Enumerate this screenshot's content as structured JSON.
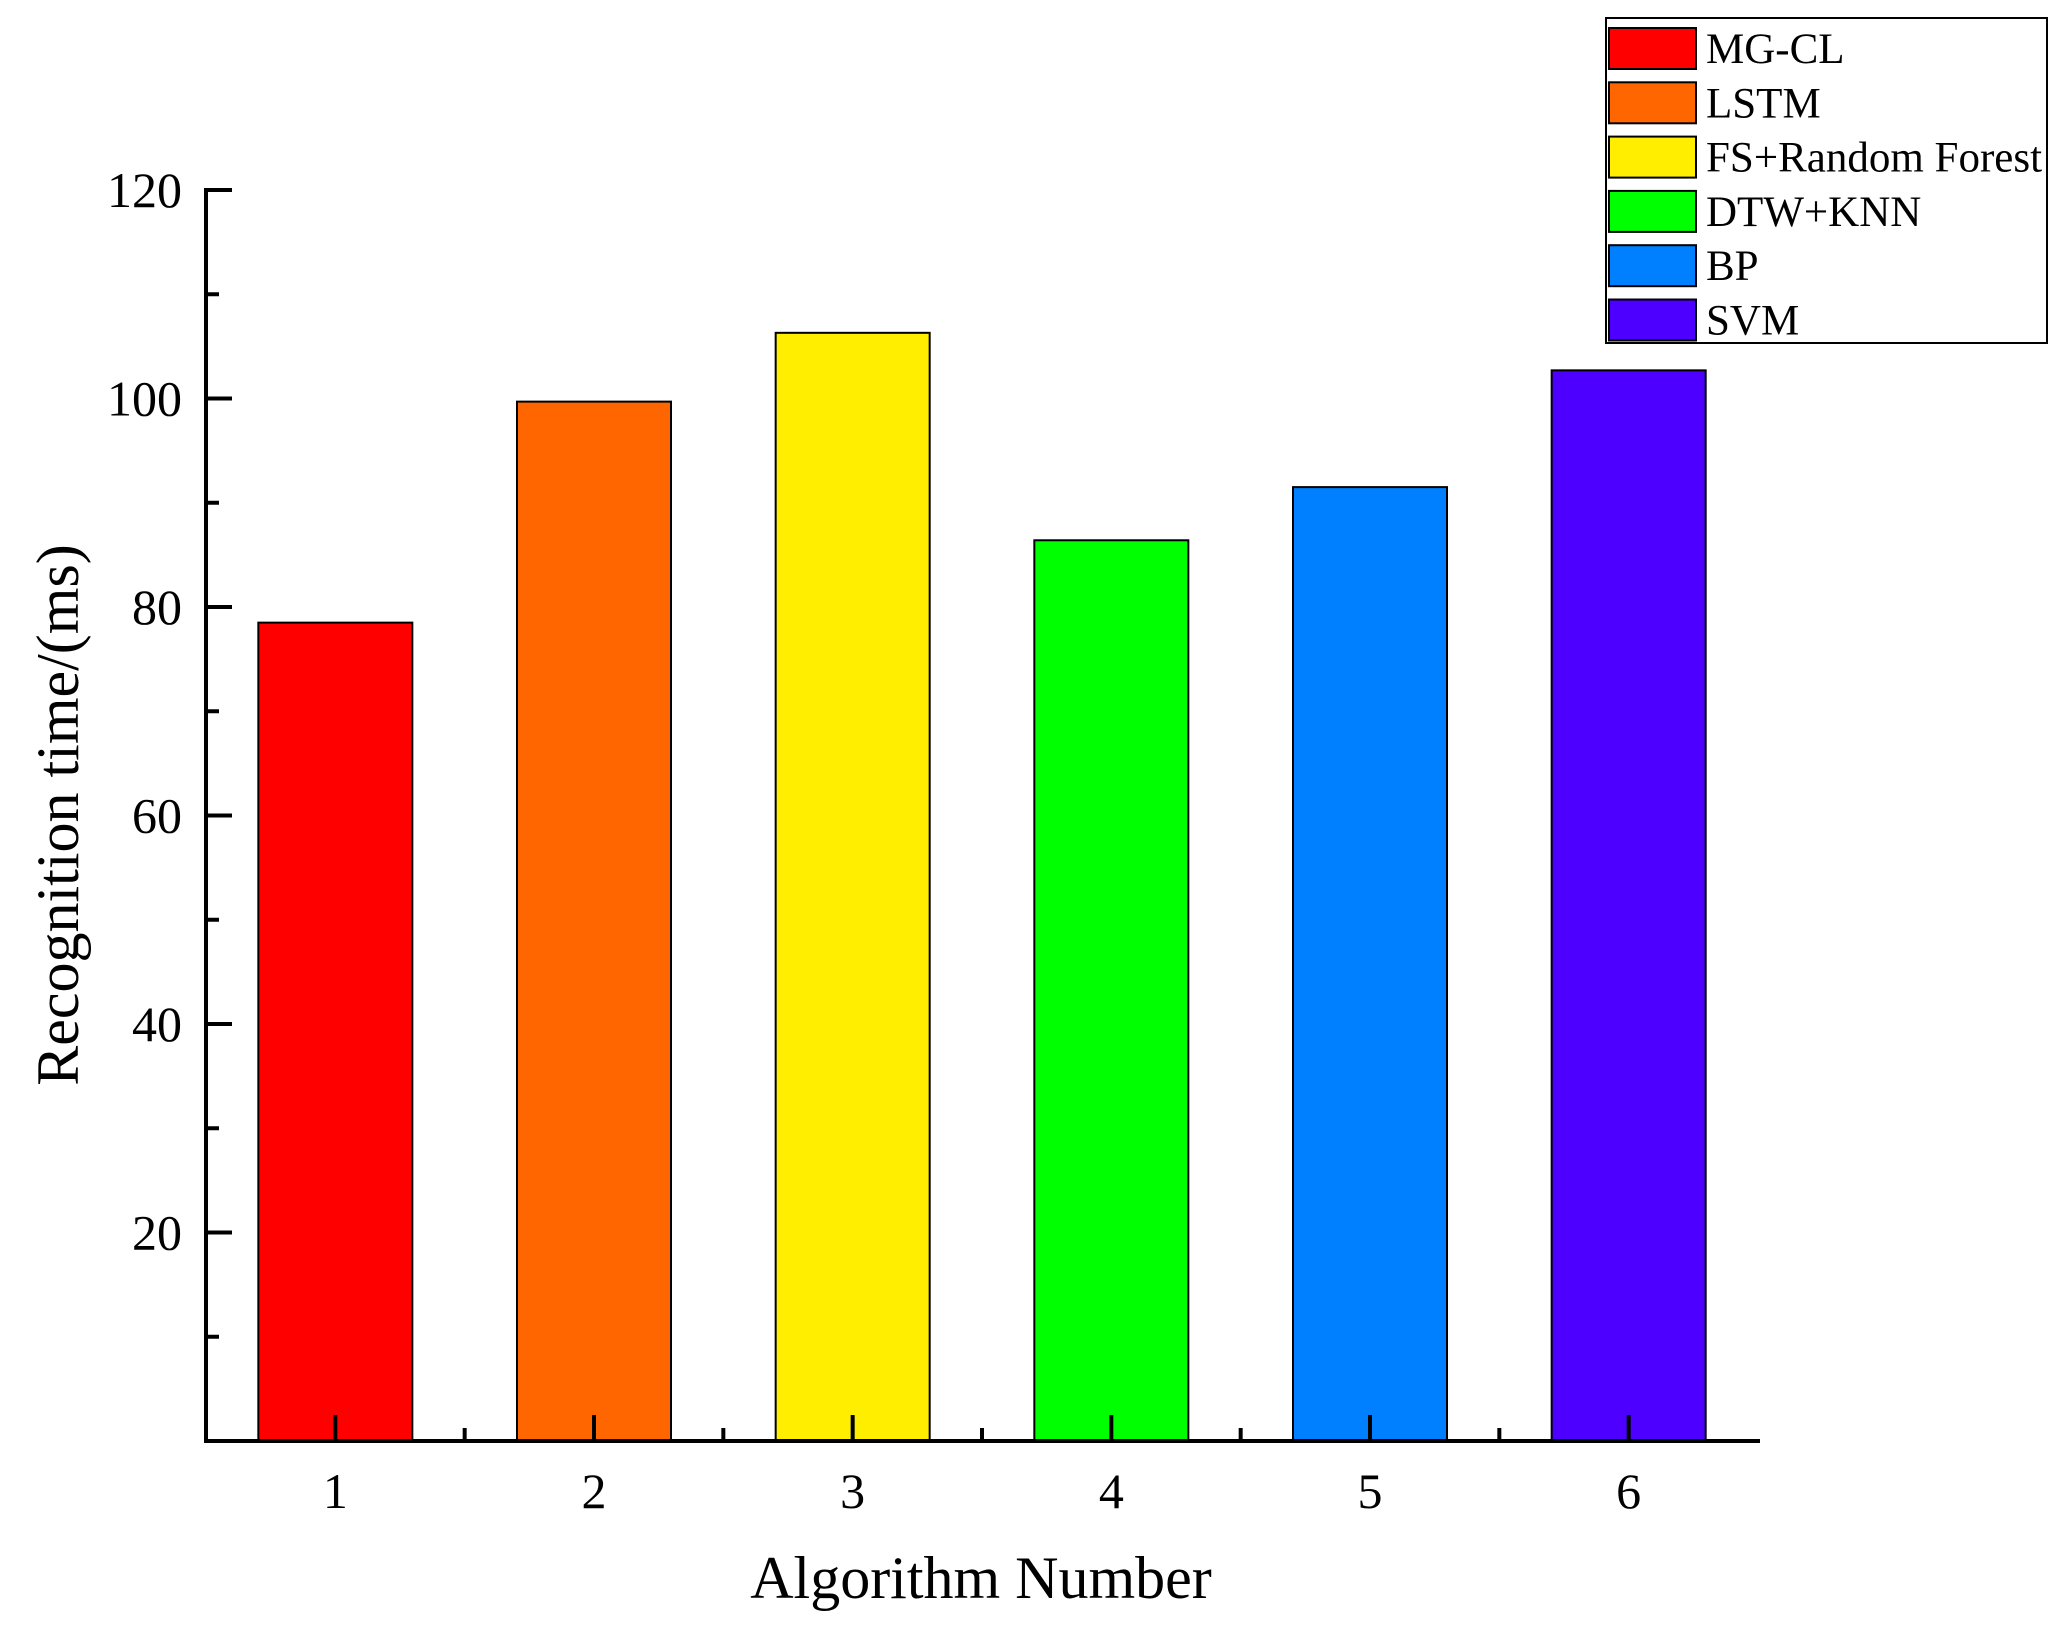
{
  "chart_data": {
    "type": "bar",
    "categories": [
      "1",
      "2",
      "3",
      "4",
      "5",
      "6"
    ],
    "values": [
      78.5,
      99.7,
      106.3,
      86.4,
      91.5,
      102.7
    ],
    "colors": [
      "#ff0000",
      "#ff6600",
      "#ffee00",
      "#00ff00",
      "#0080ff",
      "#4d00ff"
    ],
    "series_names": [
      "MG-CL",
      "LSTM",
      "FS+Random Forest",
      "DTW+KNN",
      "BP",
      "SVM"
    ],
    "xlabel": "Algorithm Number",
    "ylabel": "Recognition time/(ms)",
    "yticks": [
      20,
      40,
      60,
      80,
      100,
      120
    ],
    "ylim": [
      0,
      120
    ],
    "grid": false,
    "legend_position": "top-right"
  }
}
